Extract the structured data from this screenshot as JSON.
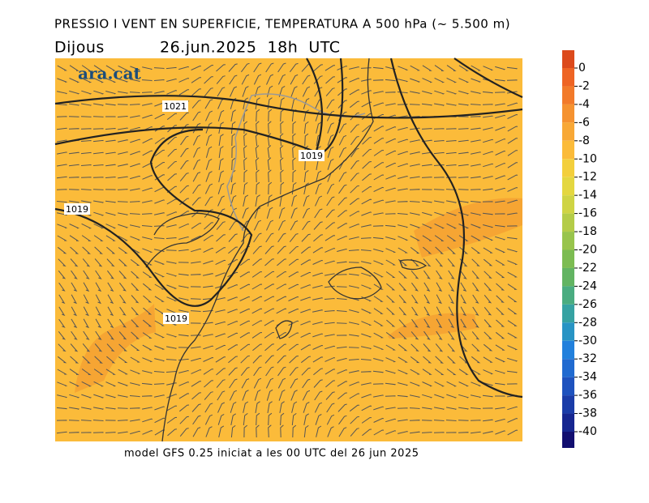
{
  "title": "PRESSIO I VENT EN SUPERFICIE, TEMPERATURA A 500 hPa (~ 5.500 m)",
  "day": "Dijous",
  "datetime": "26.jun.2025  18h  UTC",
  "logo": "ara.cat",
  "isobar_labels": [
    "1021",
    "1019",
    "1019",
    "1019"
  ],
  "footer": "model GFS 0.25 iniciat a les 00 UTC del 26 jun 2025",
  "colorbar": {
    "ticks": [
      0,
      -2,
      -4,
      -6,
      -8,
      -10,
      -12,
      -14,
      -16,
      -18,
      -20,
      -22,
      -24,
      -26,
      -28,
      -30,
      -32,
      -34,
      -36,
      -38,
      -40
    ],
    "colors": [
      "#dc4a1c",
      "#ee6424",
      "#f27a2a",
      "#f59230",
      "#f8a836",
      "#fbbb3a",
      "#f3cf3c",
      "#e4d740",
      "#cfd444",
      "#b4cc48",
      "#98c44c",
      "#7cbc52",
      "#62b462",
      "#4aac80",
      "#36a2a2",
      "#2894c4",
      "#2280dc",
      "#206ad0",
      "#1e52be",
      "#1a3ca8",
      "#162690",
      "#120e70"
    ]
  }
}
